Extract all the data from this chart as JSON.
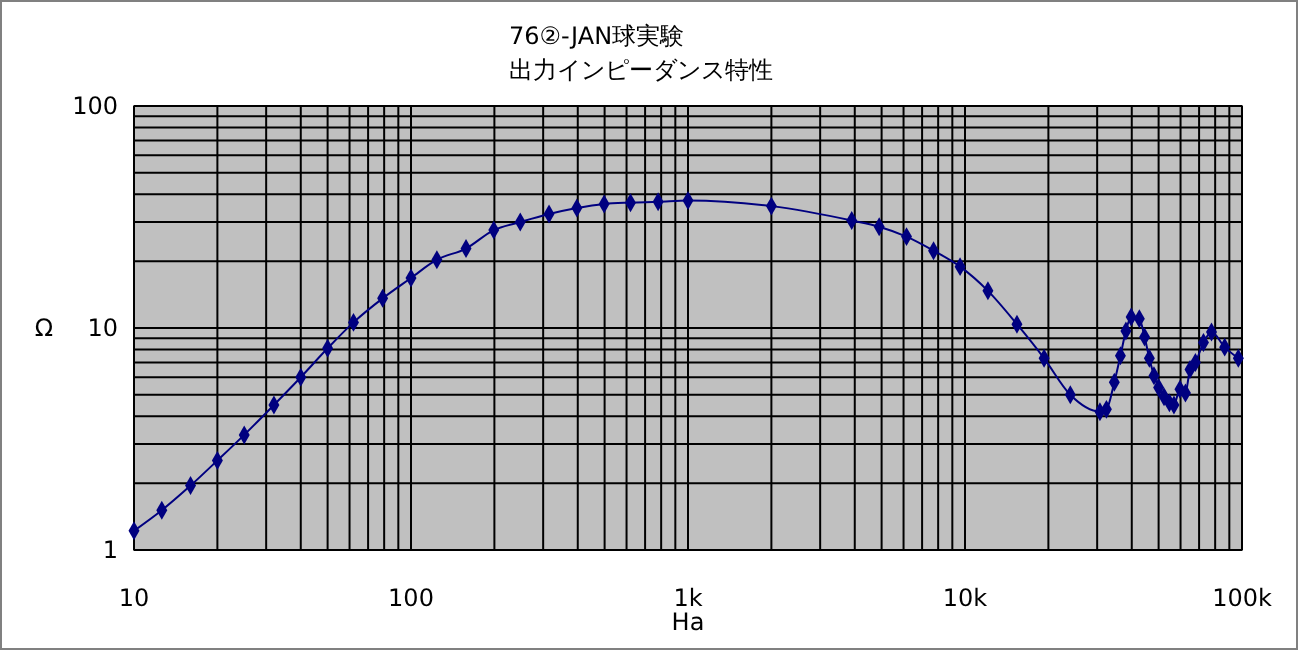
{
  "chart_data": {
    "type": "line",
    "title": "76②-JAN球実験",
    "subtitle": "出力インピーダンス特性",
    "xlabel": "Ha",
    "ylabel": "Ω",
    "log": "xy",
    "grid": true,
    "marker": "diamond",
    "line_style": "solid",
    "xlim": [
      10,
      100000
    ],
    "ylim": [
      1,
      100
    ],
    "xticks": [
      10,
      {
        "value": 20,
        "label": null
      },
      {
        "value": 30,
        "label": null
      },
      {
        "value": 40,
        "label": null
      },
      {
        "value": 50,
        "label": null
      },
      {
        "value": 60,
        "label": null
      },
      {
        "value": 70,
        "label": null
      },
      {
        "value": 80,
        "label": null
      },
      {
        "value": 90,
        "label": null
      },
      100,
      {
        "value": 200,
        "label": null
      },
      {
        "value": 300,
        "label": null
      },
      {
        "value": 400,
        "label": null
      },
      {
        "value": 500,
        "label": null
      },
      {
        "value": 600,
        "label": null
      },
      {
        "value": 700,
        "label": null
      },
      {
        "value": 800,
        "label": null
      },
      {
        "value": 900,
        "label": null
      },
      {
        "value": 1000,
        "label": "1k"
      },
      {
        "value": 2000,
        "label": null
      },
      {
        "value": 3000,
        "label": null
      },
      {
        "value": 4000,
        "label": null
      },
      {
        "value": 5000,
        "label": null
      },
      {
        "value": 6000,
        "label": null
      },
      {
        "value": 7000,
        "label": null
      },
      {
        "value": 8000,
        "label": null
      },
      {
        "value": 9000,
        "label": null
      },
      {
        "value": 10000,
        "label": "10k"
      },
      {
        "value": 20000,
        "label": null
      },
      {
        "value": 30000,
        "label": null
      },
      {
        "value": 40000,
        "label": null
      },
      {
        "value": 50000,
        "label": null
      },
      {
        "value": 60000,
        "label": null
      },
      {
        "value": 70000,
        "label": null
      },
      {
        "value": 80000,
        "label": null
      },
      {
        "value": 90000,
        "label": null
      },
      {
        "value": 100000,
        "label": "100k"
      }
    ],
    "yticks": [
      1,
      {
        "value": 2,
        "label": null
      },
      {
        "value": 3,
        "label": null
      },
      {
        "value": 4,
        "label": null
      },
      {
        "value": 5,
        "label": null
      },
      {
        "value": 6,
        "label": null
      },
      {
        "value": 7,
        "label": null
      },
      {
        "value": 8,
        "label": null
      },
      {
        "value": 9,
        "label": null
      },
      10,
      {
        "value": 20,
        "label": null
      },
      {
        "value": 30,
        "label": null
      },
      {
        "value": 40,
        "label": null
      },
      {
        "value": 50,
        "label": null
      },
      {
        "value": 60,
        "label": null
      },
      {
        "value": 70,
        "label": null
      },
      {
        "value": 80,
        "label": null
      },
      {
        "value": 90,
        "label": null
      },
      100
    ],
    "x": [
      10,
      12.6,
      16,
      20,
      25,
      32,
      40,
      50,
      62,
      79,
      100,
      124,
      158,
      199,
      248,
      315,
      397,
      498,
      620,
      780,
      1000,
      2000,
      3900,
      4900,
      6150,
      7700,
      9600,
      12100,
      15400,
      19300,
      24000,
      30700,
      32400,
      34600,
      36400,
      38100,
      39800,
      42600,
      44500,
      46300,
      48100,
      50000,
      52300,
      54700,
      56800,
      59700,
      62500,
      64900,
      67900,
      72600,
      77600,
      86600,
      97000
    ],
    "series": [
      {
        "color": "#000080",
        "values": [
          1.22,
          1.51,
          1.95,
          2.53,
          3.3,
          4.5,
          6.0,
          8.1,
          10.6,
          13.6,
          16.8,
          20.3,
          22.8,
          27.6,
          30,
          32.6,
          34.7,
          36.2,
          36.7,
          37,
          37.5,
          35.4,
          30.5,
          28.6,
          25.8,
          22.3,
          18.9,
          14.7,
          10.4,
          7.3,
          5.0,
          4.2,
          4.3,
          5.7,
          7.5,
          9.7,
          11.2,
          11.0,
          9.1,
          7.3,
          6.1,
          5.4,
          4.9,
          4.6,
          4.5,
          5.3,
          5.1,
          6.5,
          7.0,
          8.6,
          9.6,
          8.2,
          7.3
        ]
      }
    ]
  }
}
